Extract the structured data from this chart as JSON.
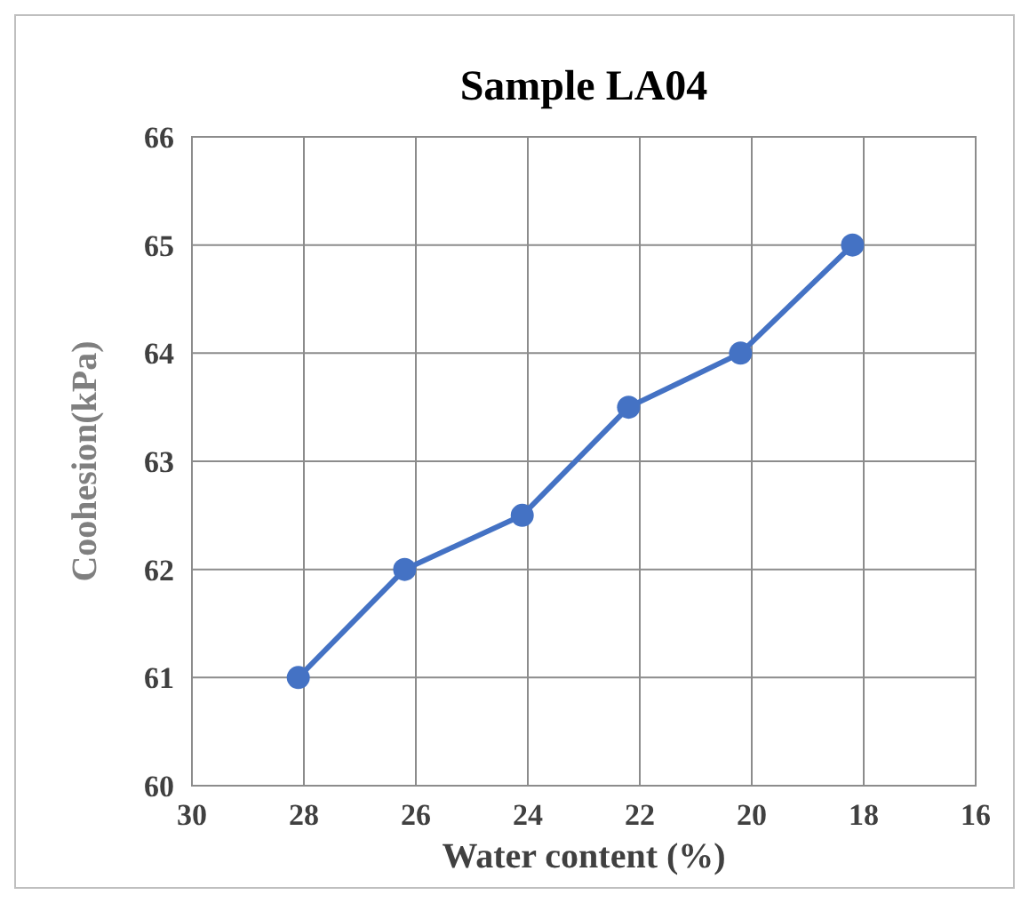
{
  "chart_data": {
    "type": "line",
    "title": "Sample LA04",
    "xlabel": "Water content (%)",
    "ylabel": "Coohesion(kPa)",
    "x": [
      28.1,
      26.2,
      24.1,
      22.2,
      20.2,
      18.2
    ],
    "series": [
      {
        "color": "#4472c4",
        "values": [
          61,
          62,
          62.5,
          63.5,
          64,
          65
        ]
      }
    ],
    "xlim": [
      30,
      16
    ],
    "xticks": [
      30,
      28,
      26,
      24,
      22,
      20,
      18,
      16
    ],
    "ylim": [
      60,
      66
    ],
    "yticks": [
      60,
      61,
      62,
      63,
      64,
      65,
      66
    ],
    "grid": true,
    "marker": "circle",
    "line_style": "solid"
  }
}
